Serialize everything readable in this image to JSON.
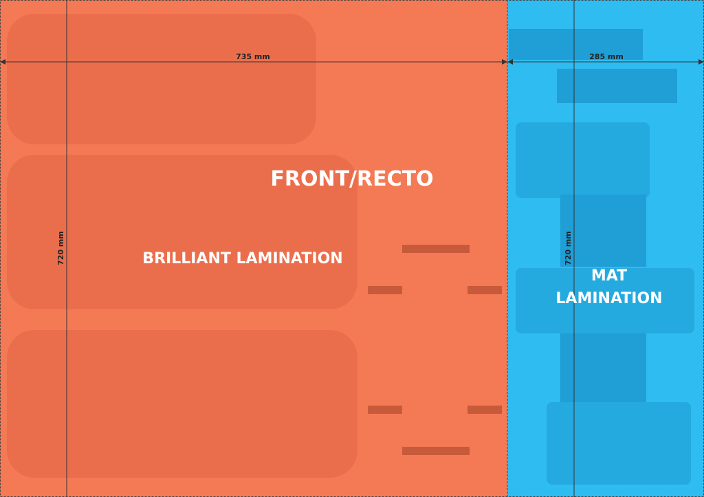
{
  "dimensions": {
    "front_width": "735 mm",
    "back_width": "285 mm",
    "front_height": "720 mm",
    "back_height": "720 mm"
  },
  "labels": {
    "front": "FRONT/RECTO",
    "brilliant": "BRILLIANT LAMINATION",
    "mat": [
      "MAT",
      "LAMINATION"
    ]
  }
}
